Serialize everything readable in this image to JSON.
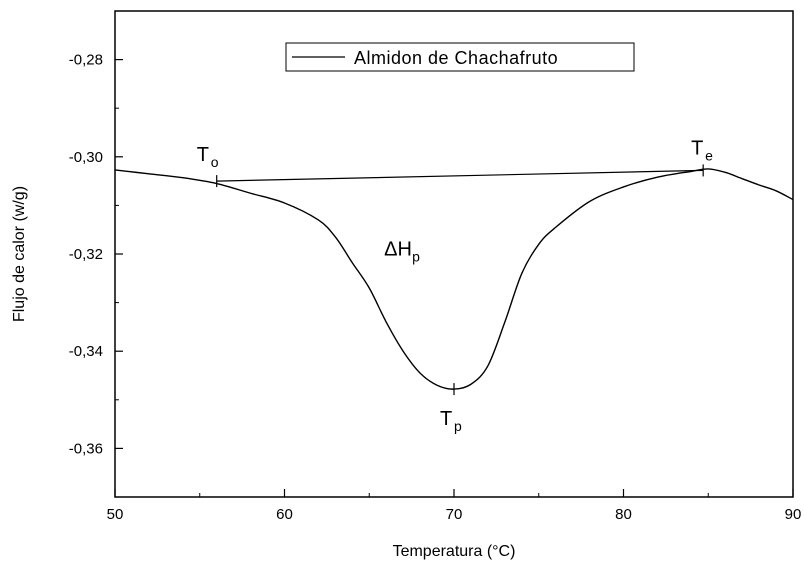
{
  "chart_data": {
    "type": "line",
    "title": "",
    "xlabel": "Temperatura (°C)",
    "ylabel": "Flujo de calor (w/g)",
    "xlim": [
      50,
      90
    ],
    "ylim": [
      -0.37,
      -0.27
    ],
    "x_ticks": [
      50,
      60,
      70,
      80,
      90
    ],
    "x_tick_labels": [
      "50",
      "60",
      "70",
      "80",
      "90"
    ],
    "y_ticks": [
      -0.36,
      -0.34,
      -0.32,
      -0.3,
      -0.28
    ],
    "y_tick_labels": [
      "-0,36",
      "-0,34",
      "-0,32",
      "-0,30",
      "-0,28"
    ],
    "grid": false,
    "legend_position": "top",
    "series": [
      {
        "name": "Almidon de Chachafruto",
        "color": "#000000",
        "x": [
          50,
          52,
          54,
          56,
          58,
          60,
          62,
          63,
          64,
          65,
          66,
          67,
          68,
          69,
          70,
          71,
          72,
          73,
          74,
          75,
          76,
          78,
          80,
          82,
          84,
          85,
          86,
          87,
          88,
          89,
          90
        ],
        "y": [
          -0.3027,
          -0.3035,
          -0.3043,
          -0.3055,
          -0.3075,
          -0.3095,
          -0.313,
          -0.3165,
          -0.3218,
          -0.327,
          -0.334,
          -0.34,
          -0.3445,
          -0.347,
          -0.3478,
          -0.3468,
          -0.343,
          -0.334,
          -0.324,
          -0.318,
          -0.3145,
          -0.3092,
          -0.3062,
          -0.3042,
          -0.303,
          -0.3025,
          -0.3032,
          -0.3045,
          -0.3058,
          -0.307,
          -0.3088
        ]
      }
    ],
    "baseline": {
      "x": [
        56,
        84.7
      ],
      "y": [
        -0.305,
        -0.3028
      ]
    },
    "markers": [
      {
        "x": 56,
        "y": -0.305
      },
      {
        "x": 70,
        "y": -0.3478
      },
      {
        "x": 84.7,
        "y": -0.3028
      }
    ],
    "annotations": [
      {
        "main": "T",
        "sub": "o",
        "x": 56,
        "y": -0.305
      },
      {
        "main": "T",
        "sub": "e",
        "x": 84.7,
        "y": -0.3028
      },
      {
        "main": "T",
        "sub": "p",
        "x": 70,
        "y": -0.3478
      },
      {
        "main": "ΔH",
        "sub": "p",
        "x": 68,
        "y": -0.3215
      }
    ]
  }
}
